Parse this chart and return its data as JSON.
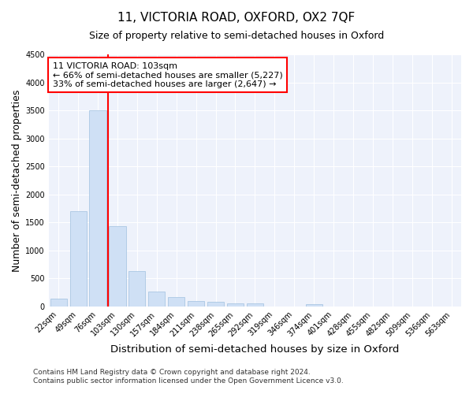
{
  "title": "11, VICTORIA ROAD, OXFORD, OX2 7QF",
  "subtitle": "Size of property relative to semi-detached houses in Oxford",
  "xlabel": "Distribution of semi-detached houses by size in Oxford",
  "ylabel": "Number of semi-detached properties",
  "bar_color": "#cfe0f5",
  "bar_edge_color": "#a0c0e0",
  "categories": [
    "22sqm",
    "49sqm",
    "76sqm",
    "103sqm",
    "130sqm",
    "157sqm",
    "184sqm",
    "211sqm",
    "238sqm",
    "265sqm",
    "292sqm",
    "319sqm",
    "346sqm",
    "374sqm",
    "401sqm",
    "428sqm",
    "455sqm",
    "482sqm",
    "509sqm",
    "536sqm",
    "563sqm"
  ],
  "values": [
    140,
    1700,
    3500,
    1430,
    630,
    270,
    165,
    100,
    80,
    60,
    50,
    0,
    0,
    45,
    0,
    0,
    0,
    0,
    0,
    0,
    0
  ],
  "vline_x": 2.5,
  "annotation_text": "11 VICTORIA ROAD: 103sqm\n← 66% of semi-detached houses are smaller (5,227)\n33% of semi-detached houses are larger (2,647) →",
  "annotation_box_color": "white",
  "annotation_box_edge": "red",
  "vline_color": "red",
  "ylim": [
    0,
    4500
  ],
  "yticks": [
    0,
    500,
    1000,
    1500,
    2000,
    2500,
    3000,
    3500,
    4000,
    4500
  ],
  "footer_line1": "Contains HM Land Registry data © Crown copyright and database right 2024.",
  "footer_line2": "Contains public sector information licensed under the Open Government Licence v3.0.",
  "bg_color": "#eef2fb",
  "grid_color": "white",
  "title_fontsize": 11,
  "subtitle_fontsize": 9,
  "axis_label_fontsize": 9,
  "tick_fontsize": 7,
  "footer_fontsize": 6.5
}
